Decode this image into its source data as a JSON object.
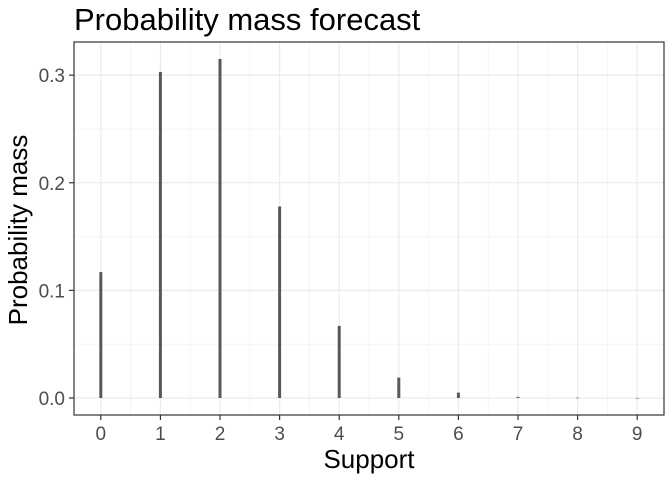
{
  "chart_data": {
    "type": "bar",
    "title": "Probability mass forecast",
    "xlabel": "Support",
    "ylabel": "Probability mass",
    "x": [
      0,
      1,
      2,
      3,
      4,
      5,
      6,
      7,
      8,
      9
    ],
    "x_tick_labels": [
      "0",
      "1",
      "2",
      "3",
      "4",
      "5",
      "6",
      "7",
      "8",
      "9"
    ],
    "values": [
      0.117,
      0.303,
      0.315,
      0.178,
      0.067,
      0.019,
      0.005,
      0.001,
      0.0003,
      0.0001
    ],
    "y_ticks": [
      0.0,
      0.1,
      0.2,
      0.3
    ],
    "y_tick_labels": [
      "0.0",
      "0.1",
      "0.2",
      "0.3"
    ],
    "xlim": [
      -0.45,
      9.45
    ],
    "ylim": [
      -0.0158,
      0.3308
    ],
    "grid": true,
    "legend": "none",
    "colors": {
      "bar": "#595959",
      "grid_major": "#ebebeb",
      "grid_minor": "#f5f5f5",
      "panel_border": "#333333",
      "tick": "#333333"
    }
  }
}
